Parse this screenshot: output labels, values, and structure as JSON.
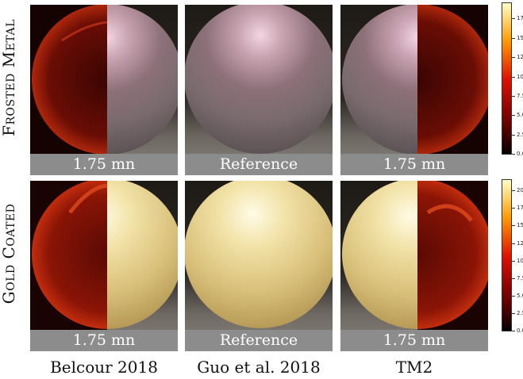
{
  "rows": [
    {
      "label": "Frosted Metal"
    },
    {
      "label": "Gold Coated"
    }
  ],
  "columns": [
    {
      "method": "Belcour 2018"
    },
    {
      "method": "Guo et al. 2018"
    },
    {
      "method": "TM2"
    }
  ],
  "captions": {
    "row1": [
      "1.75 mn",
      "Reference",
      "1.75 mn"
    ],
    "row2": [
      "1.75 mn",
      "Reference",
      "1.75 mn"
    ]
  },
  "colorbars": [
    {
      "ticks": [
        "17.5",
        "15.0",
        "12.5",
        "10.0",
        "7.5",
        "5.0",
        "2.5",
        "0.0"
      ],
      "min": 0.0,
      "max": 19.5
    },
    {
      "ticks": [
        "20.0",
        "17.5",
        "15.0",
        "12.5",
        "10.0",
        "7.5",
        "5.0",
        "2.5",
        "0.0"
      ],
      "min": 0.0,
      "max": 21.5
    }
  ],
  "colors": {
    "caption_bar": "#8c8c8c",
    "frosted_sphere": "#a8969c",
    "gold_sphere": "#e8d79a",
    "error_heatmap": "#8a1206"
  }
}
